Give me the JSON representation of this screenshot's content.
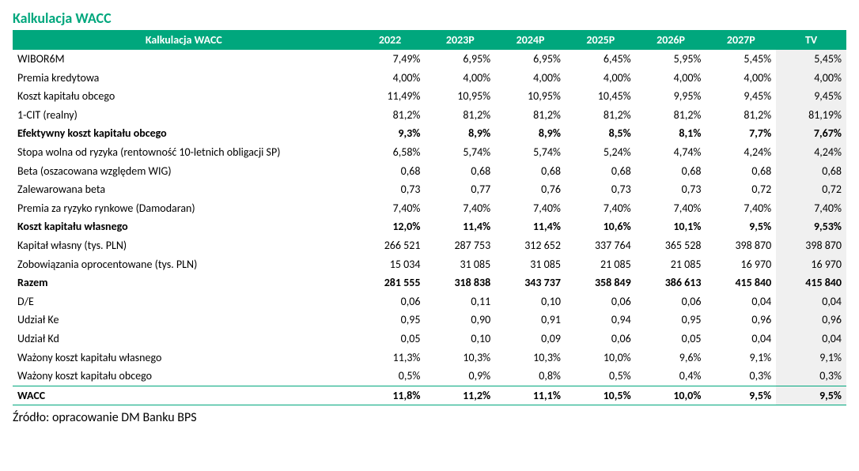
{
  "title": "Kalkulacja WACC",
  "source": "Źródło: opracowanie DM Banku BPS",
  "table": {
    "header_label": "Kalkulacja WACC",
    "columns": [
      "2022",
      "2023P",
      "2024P",
      "2025P",
      "2026P",
      "2027P",
      "TV"
    ],
    "rows": [
      {
        "label": "WIBOR6M",
        "values": [
          "7,49%",
          "6,95%",
          "6,95%",
          "6,45%",
          "5,95%",
          "5,45%",
          "5,45%"
        ],
        "bold": false
      },
      {
        "label": "Premia kredytowa",
        "values": [
          "4,00%",
          "4,00%",
          "4,00%",
          "4,00%",
          "4,00%",
          "4,00%",
          "4,00%"
        ],
        "bold": false
      },
      {
        "label": "Koszt kapitału obcego",
        "values": [
          "11,49%",
          "10,95%",
          "10,95%",
          "10,45%",
          "9,95%",
          "9,45%",
          "9,45%"
        ],
        "bold": false
      },
      {
        "label": "1-CIT (realny)",
        "values": [
          "81,2%",
          "81,2%",
          "81,2%",
          "81,2%",
          "81,2%",
          "81,2%",
          "81,19%"
        ],
        "bold": false
      },
      {
        "label": "Efektywny koszt kapitału obcego",
        "values": [
          "9,3%",
          "8,9%",
          "8,9%",
          "8,5%",
          "8,1%",
          "7,7%",
          "7,67%"
        ],
        "bold": true
      },
      {
        "label": "Stopa wolna od ryzyka (rentowność 10-letnich obligacji SP)",
        "values": [
          "6,58%",
          "5,74%",
          "5,74%",
          "5,24%",
          "4,74%",
          "4,24%",
          "4,24%"
        ],
        "bold": false
      },
      {
        "label": "Beta (oszacowana względem WIG)",
        "values": [
          "0,68",
          "0,68",
          "0,68",
          "0,68",
          "0,68",
          "0,68",
          "0,68"
        ],
        "bold": false
      },
      {
        "label": "Zalewarowana beta",
        "values": [
          "0,73",
          "0,77",
          "0,76",
          "0,73",
          "0,73",
          "0,72",
          "0,72"
        ],
        "bold": false
      },
      {
        "label": "Premia za ryzyko rynkowe (Damodaran)",
        "values": [
          "7,40%",
          "7,40%",
          "7,40%",
          "7,40%",
          "7,40%",
          "7,40%",
          "7,40%"
        ],
        "bold": false
      },
      {
        "label": "Koszt kapitału własnego",
        "values": [
          "12,0%",
          "11,4%",
          "11,4%",
          "10,6%",
          "10,1%",
          "9,5%",
          "9,53%"
        ],
        "bold": true
      },
      {
        "label": "Kapitał własny (tys. PLN)",
        "values": [
          "266 521",
          "287 753",
          "312 652",
          "337 764",
          "365 528",
          "398 870",
          "398 870"
        ],
        "bold": false
      },
      {
        "label": "Zobowiązania oprocentowane (tys. PLN)",
        "values": [
          "15 034",
          "31 085",
          "31 085",
          "21 085",
          "21 085",
          "16 970",
          "16 970"
        ],
        "bold": false
      },
      {
        "label": "Razem",
        "values": [
          "281 555",
          "318 838",
          "343 737",
          "358 849",
          "386 613",
          "415 840",
          "415 840"
        ],
        "bold": true
      },
      {
        "label": "D/E",
        "values": [
          "0,06",
          "0,11",
          "0,10",
          "0,06",
          "0,06",
          "0,04",
          "0,04"
        ],
        "bold": false
      },
      {
        "label": "Udział Ke",
        "values": [
          "0,95",
          "0,90",
          "0,91",
          "0,94",
          "0,95",
          "0,96",
          "0,96"
        ],
        "bold": false
      },
      {
        "label": "Udział Kd",
        "values": [
          "0,05",
          "0,10",
          "0,09",
          "0,06",
          "0,05",
          "0,04",
          "0,04"
        ],
        "bold": false
      },
      {
        "label": "Ważony koszt kapitału własnego",
        "values": [
          "11,3%",
          "10,3%",
          "10,3%",
          "10,0%",
          "9,6%",
          "9,1%",
          "9,1%"
        ],
        "bold": false
      },
      {
        "label": "Ważony koszt kapitału obcego",
        "values": [
          "0,5%",
          "0,9%",
          "0,8%",
          "0,5%",
          "0,4%",
          "0,3%",
          "0,3%"
        ],
        "bold": false
      },
      {
        "label": "WACC",
        "values": [
          "11,8%",
          "11,2%",
          "11,1%",
          "10,5%",
          "10,0%",
          "9,5%",
          "9,5%"
        ],
        "bold": true,
        "top_border": true,
        "bottom_border": true
      }
    ]
  },
  "colors": {
    "accent": "#00a77d",
    "tv_bg": "#f0f0f0"
  }
}
